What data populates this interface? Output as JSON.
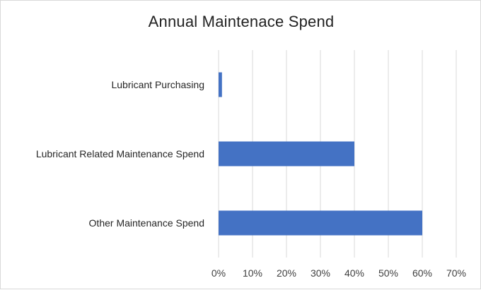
{
  "chart_data": {
    "type": "bar",
    "orientation": "horizontal",
    "title": "Annual Maintenace Spend",
    "categories": [
      "Lubricant Purchasing",
      "Lubricant Related Maintenance Spend",
      "Other Maintenance Spend"
    ],
    "values": [
      1,
      40,
      60
    ],
    "value_unit": "%",
    "xlim": [
      0,
      70
    ],
    "x_ticks": [
      "0%",
      "10%",
      "20%",
      "30%",
      "40%",
      "50%",
      "60%",
      "70%"
    ],
    "xlabel": "",
    "ylabel": "",
    "grid": "vertical",
    "legend": "none",
    "bar_color": "#4472C4",
    "grid_color": "#d9d9d9"
  }
}
